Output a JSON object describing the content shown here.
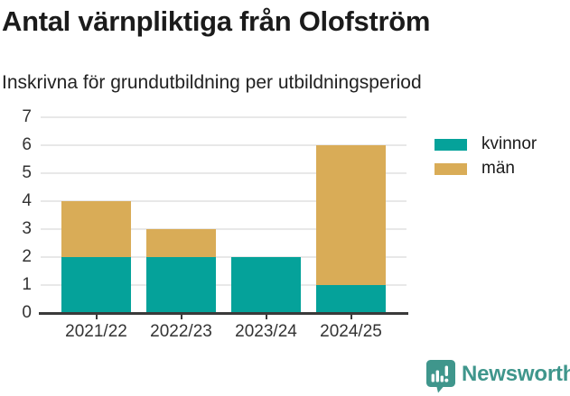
{
  "title": "Antal värnpliktiga från Olofström",
  "subtitle": "Inskrivna för grundutbildning per utbildningsperiod",
  "footer": {
    "brand": "Newsworthy"
  },
  "colors": {
    "kvinnor": "#05A29A",
    "man": "#D9AC57",
    "brand_teal": "#3F968C",
    "axis": "#3a3a3a",
    "gridline": "#e8e8e8",
    "title_text": "#1b1b1b"
  },
  "chart_data": {
    "type": "bar",
    "stacked": true,
    "title": "Antal värnpliktiga från Olofström",
    "subtitle": "Inskrivna för grundutbildning per utbildningsperiod",
    "categories": [
      "2021/22",
      "2022/23",
      "2023/24",
      "2024/25"
    ],
    "series": [
      {
        "name": "kvinnor",
        "color": "#05A29A",
        "values": [
          2,
          2,
          2,
          1
        ]
      },
      {
        "name": "män",
        "color": "#D9AC57",
        "values": [
          2,
          1,
          0,
          5
        ]
      }
    ],
    "totals": [
      4,
      3,
      2,
      6
    ],
    "xlabel": "",
    "ylabel": "",
    "ylim": [
      0,
      7
    ],
    "yticks": [
      0,
      1,
      2,
      3,
      4,
      5,
      6,
      7
    ],
    "grid": true,
    "legend_position": "right"
  }
}
